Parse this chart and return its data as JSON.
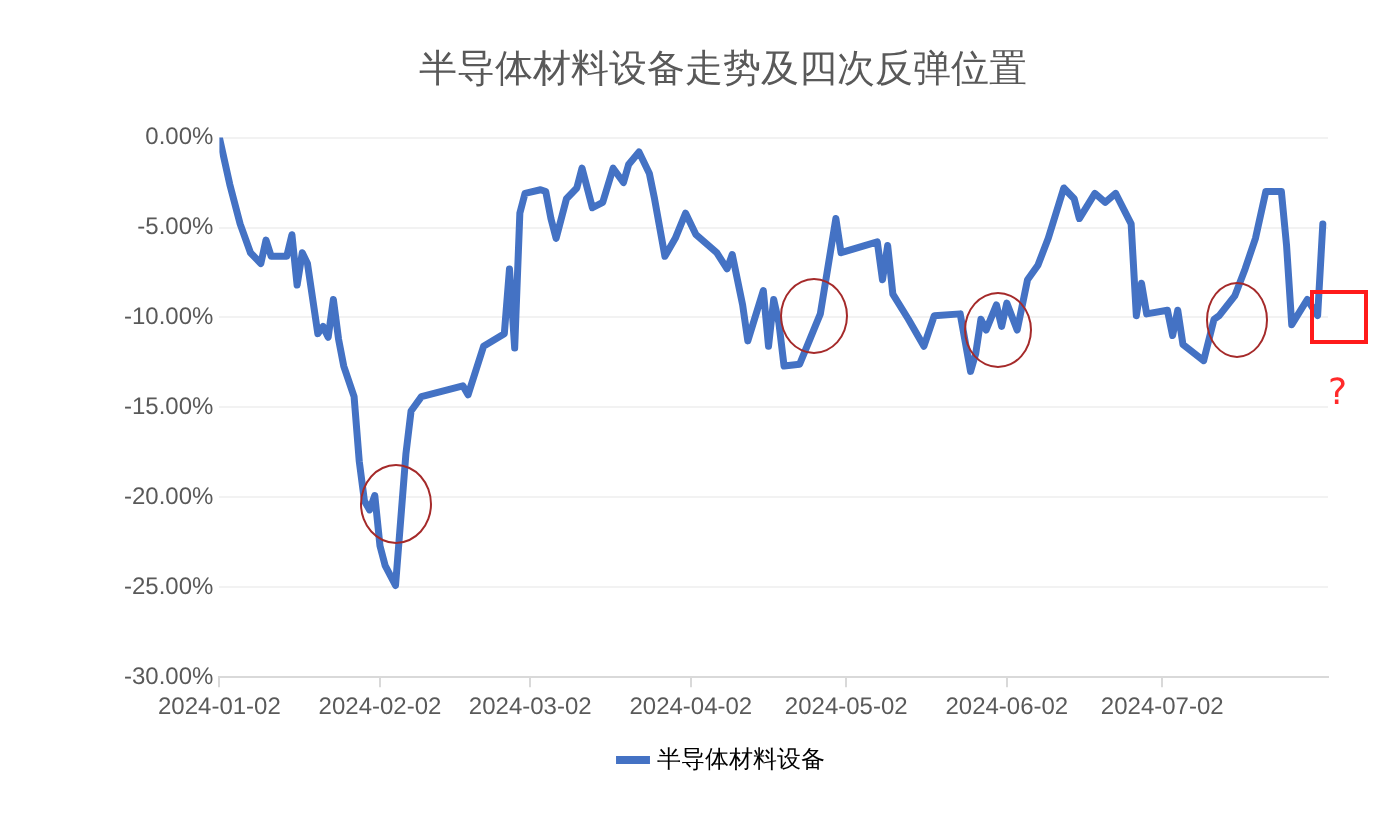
{
  "chart_data": {
    "type": "line",
    "title": "半导体材料设备走势及四次反弹位置",
    "x": [
      "2024-01-02",
      "2024-01-04",
      "2024-01-06",
      "2024-01-08",
      "2024-01-10",
      "2024-01-11",
      "2024-01-12",
      "2024-01-15",
      "2024-01-16",
      "2024-01-17",
      "2024-01-18",
      "2024-01-19",
      "2024-01-21",
      "2024-01-22",
      "2024-01-23",
      "2024-01-24",
      "2024-01-25",
      "2024-01-26",
      "2024-01-28",
      "2024-01-29",
      "2024-01-30",
      "2024-01-31",
      "2024-02-01",
      "2024-02-02",
      "2024-02-03",
      "2024-02-05",
      "2024-02-07",
      "2024-02-08",
      "2024-02-10",
      "2024-02-18",
      "2024-02-19",
      "2024-02-22",
      "2024-02-26",
      "2024-02-27",
      "2024-02-28",
      "2024-02-29",
      "2024-03-01",
      "2024-03-04",
      "2024-03-05",
      "2024-03-06",
      "2024-03-07",
      "2024-03-09",
      "2024-03-11",
      "2024-03-12",
      "2024-03-14",
      "2024-03-16",
      "2024-03-18",
      "2024-03-20",
      "2024-03-21",
      "2024-03-23",
      "2024-03-25",
      "2024-03-26",
      "2024-03-28",
      "2024-03-30",
      "2024-04-01",
      "2024-04-03",
      "2024-04-07",
      "2024-04-09",
      "2024-04-10",
      "2024-04-12",
      "2024-04-13",
      "2024-04-16",
      "2024-04-17",
      "2024-04-18",
      "2024-04-19",
      "2024-04-20",
      "2024-04-23",
      "2024-04-25",
      "2024-04-27",
      "2024-04-30",
      "2024-05-01",
      "2024-05-08",
      "2024-05-09",
      "2024-05-10",
      "2024-05-11",
      "2024-05-14",
      "2024-05-17",
      "2024-05-19",
      "2024-05-24",
      "2024-05-26",
      "2024-05-27",
      "2024-05-28",
      "2024-05-29",
      "2024-05-31",
      "2024-06-01",
      "2024-06-02",
      "2024-06-04",
      "2024-06-06",
      "2024-06-08",
      "2024-06-10",
      "2024-06-13",
      "2024-06-15",
      "2024-06-16",
      "2024-06-19",
      "2024-06-21",
      "2024-06-23",
      "2024-06-26",
      "2024-06-27",
      "2024-06-28",
      "2024-06-29",
      "2024-07-03",
      "2024-07-04",
      "2024-07-05",
      "2024-07-06",
      "2024-07-10",
      "2024-07-12",
      "2024-07-13",
      "2024-07-16",
      "2024-07-18",
      "2024-07-20",
      "2024-07-22",
      "2024-07-25",
      "2024-07-26",
      "2024-07-27",
      "2024-07-30",
      "2024-08-01",
      "2024-08-02"
    ],
    "series": [
      {
        "name": "半导体材料设备",
        "color": "#4472c4",
        "values": [
          0,
          -2.6,
          -4.8,
          -6.4,
          -7.0,
          -5.7,
          -6.6,
          -6.6,
          -5.4,
          -8.2,
          -6.4,
          -7.0,
          -10.9,
          -10.5,
          -11.1,
          -9.0,
          -11.2,
          -12.7,
          -14.4,
          -18.0,
          -20.2,
          -20.7,
          -19.9,
          -22.7,
          -23.8,
          -24.9,
          -17.6,
          -15.2,
          -14.4,
          -13.8,
          -14.3,
          -11.6,
          -10.9,
          -7.3,
          -11.7,
          -4.2,
          -3.1,
          -2.9,
          -3.0,
          -4.5,
          -5.6,
          -3.4,
          -2.8,
          -1.7,
          -3.9,
          -3.6,
          -1.7,
          -2.5,
          -1.5,
          -0.8,
          -2.0,
          -3.4,
          -6.6,
          -5.6,
          -4.2,
          -5.4,
          -6.4,
          -7.3,
          -6.5,
          -9.3,
          -11.3,
          -8.5,
          -11.6,
          -9.0,
          -10.3,
          -12.7,
          -12.6,
          -11.2,
          -9.8,
          -4.5,
          -6.4,
          -5.8,
          -7.9,
          -6.0,
          -8.7,
          -10.1,
          -11.6,
          -9.9,
          -9.8,
          -13.0,
          -12.0,
          -10.1,
          -10.7,
          -9.3,
          -10.5,
          -9.2,
          -10.7,
          -7.9,
          -7.1,
          -5.6,
          -2.8,
          -3.4,
          -4.5,
          -3.1,
          -3.6,
          -3.1,
          -4.8,
          -9.9,
          -8.1,
          -9.8,
          -9.6,
          -11.0,
          -9.6,
          -11.5,
          -12.4,
          -10.1,
          -9.9,
          -8.8,
          -7.3,
          -5.6,
          -3.0,
          -3.0,
          -6.0,
          -10.4,
          -9.0,
          -9.9,
          -4.8
        ]
      }
    ],
    "xlim": [
      "2024-01-02",
      "2024-08-03"
    ],
    "xticks": [
      "2024-01-02",
      "2024-02-02",
      "2024-03-02",
      "2024-04-02",
      "2024-05-02",
      "2024-06-02",
      "2024-07-02"
    ],
    "ylim": [
      -30,
      0
    ],
    "yticks": [
      {
        "value": -30,
        "label": "-30.00%"
      },
      {
        "value": -25,
        "label": "-25.00%"
      },
      {
        "value": -20,
        "label": "-20.00%"
      },
      {
        "value": -15,
        "label": "-15.00%"
      },
      {
        "value": -10,
        "label": "-10.00%"
      },
      {
        "value": -5,
        "label": "-5.00%"
      },
      {
        "value": 0,
        "label": "0.00%"
      }
    ],
    "grid": "y",
    "legend": "bottom",
    "marker": "none",
    "line_style": "solid",
    "annotations": [
      "?"
    ]
  }
}
